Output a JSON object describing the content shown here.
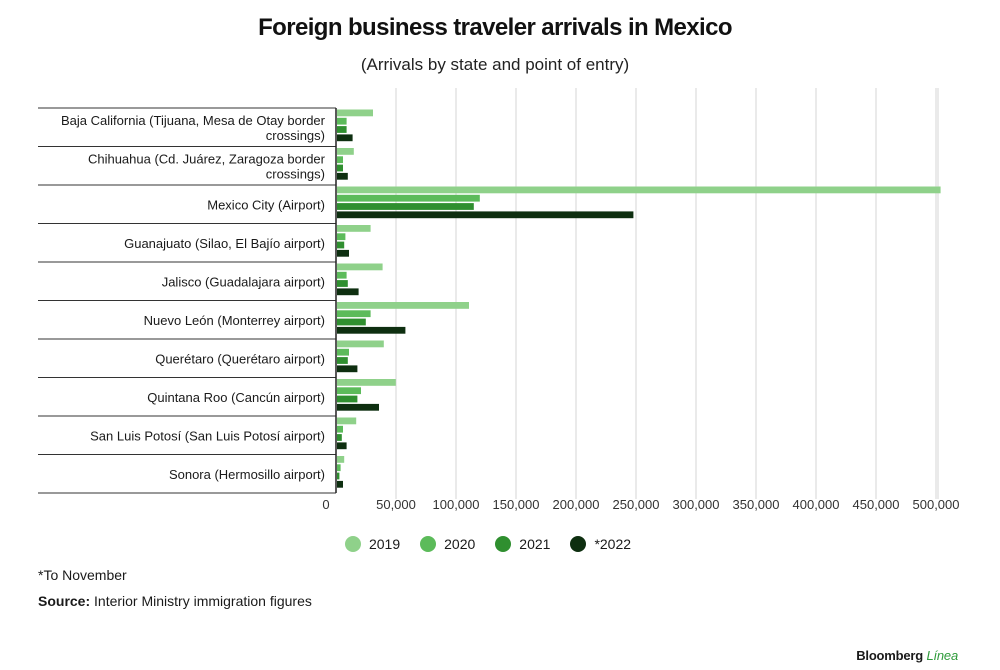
{
  "header": {
    "title": "Foreign business traveler arrivals in Mexico",
    "subtitle": "(Arrivals by state and point of entry)"
  },
  "footer": {
    "footnote": "*To November",
    "source_label": "Source:",
    "source_text": " Interior Ministry immigration figures",
    "brand_name": "Bloomberg",
    "brand_sub": "Línea"
  },
  "colors": {
    "2019": "#8fd18a",
    "2020": "#5cbb5a",
    "2021": "#2f8f2f",
    "*2022": "#0e2f10"
  },
  "chart_data": {
    "type": "bar",
    "orientation": "horizontal",
    "title": "Foreign business traveler arrivals in Mexico",
    "subtitle": "(Arrivals by state and point of entry)",
    "categories": [
      "Baja California (Tijuana, Mesa de Otay border crossings)",
      "Chihuahua (Cd. Juárez, Zaragoza border crossings)",
      "Mexico City (Airport)",
      "Guanajuato (Silao, El Bajío airport)",
      "Jalisco (Guadalajara airport)",
      "Nuevo León (Monterrey airport)",
      "Querétaro (Querétaro airport)",
      "Quintana Roo (Cancún airport)",
      "San Luis Potosí (San Luis Potosí airport)",
      "Sonora (Hermosillo airport)"
    ],
    "series": [
      {
        "name": "2019",
        "values": [
          30000,
          14000,
          503000,
          28000,
          38000,
          110000,
          39000,
          49000,
          16000,
          6000
        ]
      },
      {
        "name": "2020",
        "values": [
          8000,
          5000,
          119000,
          7000,
          8000,
          28000,
          10000,
          20000,
          5000,
          3000
        ]
      },
      {
        "name": "2021",
        "values": [
          8000,
          5000,
          114000,
          6000,
          9000,
          24000,
          9000,
          17000,
          4000,
          2000
        ]
      },
      {
        "name": "*2022",
        "values": [
          13000,
          9000,
          247000,
          10000,
          18000,
          57000,
          17000,
          35000,
          8000,
          5000
        ]
      }
    ],
    "xlim": [
      0,
      520000
    ],
    "xticks": [
      0,
      50000,
      100000,
      150000,
      200000,
      250000,
      300000,
      350000,
      400000,
      450000,
      500000
    ],
    "xtick_labels": [
      "0",
      "50,000",
      "100,000",
      "150,000",
      "200,000",
      "250,000",
      "300,000",
      "350,000",
      "400,000",
      "450,000",
      "500,000"
    ],
    "grid": true,
    "legend": "bottom-center"
  }
}
